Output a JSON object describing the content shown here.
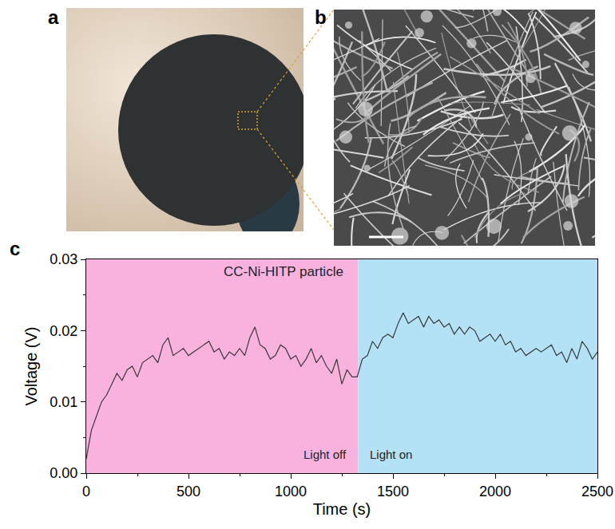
{
  "panel_labels": [
    "a",
    "b",
    "c"
  ],
  "chart_data": {
    "type": "line",
    "title": "CC-Ni-HITP particle",
    "x_label": "Time (s)",
    "y_label": "Voltage (V)",
    "xlim": [
      0,
      2500
    ],
    "ylim": [
      0,
      0.03
    ],
    "xticks": [
      0,
      500,
      1000,
      1500,
      2000,
      2500
    ],
    "yticks": [
      {
        "value": 0,
        "label": "0.00"
      },
      0.01,
      0.02,
      0.03
    ],
    "grid": false,
    "regions": [
      {
        "label": "Light off",
        "start": 0,
        "end": 1330,
        "color": "#f9b2de"
      },
      {
        "label": "Light on",
        "start": 1330,
        "end": 2500,
        "color": "#b3e2f7"
      }
    ],
    "series": [
      {
        "color": "#3a3a3a",
        "x": [
          0,
          25,
          50,
          75,
          100,
          125,
          150,
          175,
          200,
          225,
          250,
          275,
          300,
          325,
          350,
          375,
          400,
          425,
          450,
          475,
          500,
          525,
          550,
          575,
          600,
          625,
          650,
          675,
          700,
          725,
          750,
          775,
          800,
          825,
          850,
          875,
          900,
          925,
          950,
          975,
          1000,
          1025,
          1050,
          1075,
          1100,
          1125,
          1150,
          1175,
          1200,
          1225,
          1250,
          1275,
          1300,
          1325,
          1350,
          1375,
          1400,
          1425,
          1450,
          1475,
          1500,
          1525,
          1550,
          1575,
          1600,
          1625,
          1650,
          1675,
          1700,
          1725,
          1750,
          1775,
          1800,
          1825,
          1850,
          1875,
          1900,
          1925,
          1950,
          1975,
          2000,
          2025,
          2050,
          2075,
          2100,
          2125,
          2150,
          2175,
          2200,
          2225,
          2250,
          2275,
          2300,
          2325,
          2350,
          2375,
          2400,
          2425,
          2450,
          2475,
          2500
        ],
        "values": [
          0.002,
          0.006,
          0.008,
          0.01,
          0.011,
          0.0125,
          0.014,
          0.013,
          0.0145,
          0.015,
          0.0135,
          0.0155,
          0.016,
          0.0165,
          0.0155,
          0.018,
          0.019,
          0.0165,
          0.017,
          0.0175,
          0.0165,
          0.017,
          0.0175,
          0.018,
          0.0185,
          0.017,
          0.0175,
          0.016,
          0.017,
          0.0165,
          0.0175,
          0.0165,
          0.019,
          0.0205,
          0.018,
          0.0175,
          0.016,
          0.0165,
          0.018,
          0.0175,
          0.016,
          0.0165,
          0.015,
          0.016,
          0.0175,
          0.0155,
          0.0165,
          0.015,
          0.014,
          0.016,
          0.0125,
          0.0145,
          0.0135,
          0.0135,
          0.016,
          0.0165,
          0.0185,
          0.0175,
          0.019,
          0.0195,
          0.019,
          0.021,
          0.0225,
          0.021,
          0.0215,
          0.022,
          0.0205,
          0.022,
          0.021,
          0.0215,
          0.0205,
          0.021,
          0.0195,
          0.0205,
          0.0195,
          0.0205,
          0.02,
          0.0185,
          0.019,
          0.0195,
          0.0185,
          0.0195,
          0.018,
          0.0185,
          0.017,
          0.0175,
          0.0165,
          0.017,
          0.0175,
          0.017,
          0.0175,
          0.018,
          0.0165,
          0.017,
          0.0155,
          0.0175,
          0.016,
          0.0185,
          0.0175,
          0.016,
          0.017
        ]
      }
    ]
  }
}
